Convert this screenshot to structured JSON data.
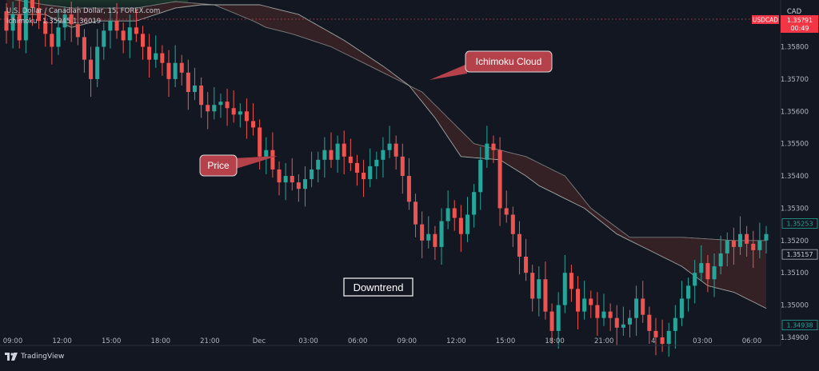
{
  "header": {
    "symbol_line": "U.S. Dollar / Canadian Dollar, 15, FOREX.com",
    "indicator_name": "Ichimoku",
    "indicator_values": "1.35945  1.36019"
  },
  "price_axis": {
    "currency": "CAD",
    "ticker_badge": "USDCAD",
    "countdown": "00:49",
    "tag_top_partial": "1.35?91"
  },
  "annotations": {
    "cloud_label": "Ichimoku Cloud",
    "price_label": "Price",
    "trend_label": "Downtrend"
  },
  "footer": {
    "brand": "TradingView"
  },
  "colors": {
    "background": "#131722",
    "bull": "#26a69a",
    "bear": "#ef5350",
    "cloud_bear_fill": "#3b2327",
    "cloud_line": "#b8bfb8",
    "callout": "#b5414b",
    "badge_red": "#f23645",
    "tag_green_text": "#26a69a"
  },
  "chart_data": {
    "type": "candlestick",
    "title": "U.S. Dollar / Canadian Dollar, 15, FOREX.com",
    "y_ticks": [
      1.349,
      1.35,
      1.351,
      1.352,
      1.353,
      1.354,
      1.355,
      1.356,
      1.357,
      1.358
    ],
    "ylim": [
      1.34885,
      1.35935
    ],
    "x_ticks": [
      "09:00",
      "12:00",
      "15:00",
      "18:00",
      "21:00",
      "Dec",
      "03:00",
      "06:00",
      "09:00",
      "12:00",
      "15:00",
      "18:00",
      "21:00",
      "4",
      "03:00",
      "06:00"
    ],
    "price_tags": [
      {
        "value": 1.35253,
        "label": "1.35253",
        "style": "green"
      },
      {
        "value": 1.35157,
        "label": "1.35157",
        "style": "dark"
      },
      {
        "value": 1.34938,
        "label": "1.34938",
        "style": "green"
      }
    ],
    "closes": [
      1.3585,
      1.359,
      1.3582,
      1.3595,
      1.3592,
      1.3588,
      1.3584,
      1.358,
      1.3586,
      1.359,
      1.3587,
      1.3583,
      1.3576,
      1.357,
      1.358,
      1.3585,
      1.3588,
      1.3585,
      1.3582,
      1.3586,
      1.3584,
      1.358,
      1.3576,
      1.3578,
      1.3575,
      1.357,
      1.3575,
      1.3572,
      1.3566,
      1.3568,
      1.3562,
      1.356,
      1.3562,
      1.3563,
      1.3561,
      1.3559,
      1.356,
      1.3557,
      1.3555,
      1.3546,
      1.3548,
      1.3542,
      1.3538,
      1.354,
      1.3538,
      1.3536,
      1.3539,
      1.3542,
      1.3545,
      1.3548,
      1.3545,
      1.355,
      1.3546,
      1.3544,
      1.3541,
      1.3539,
      1.3543,
      1.3545,
      1.3548,
      1.355,
      1.3546,
      1.354,
      1.3532,
      1.3525,
      1.352,
      1.3522,
      1.3518,
      1.3526,
      1.353,
      1.3527,
      1.3522,
      1.3528,
      1.3535,
      1.3545,
      1.355,
      1.3548,
      1.353,
      1.3528,
      1.3522,
      1.3515,
      1.351,
      1.3502,
      1.3508,
      1.3498,
      1.3492,
      1.35,
      1.351,
      1.3505,
      1.3498,
      1.3502,
      1.35,
      1.3496,
      1.3498,
      1.3496,
      1.3493,
      1.3494,
      1.3496,
      1.3502,
      1.3497,
      1.3492,
      1.349,
      1.3488,
      1.3492,
      1.3496,
      1.3502,
      1.3506,
      1.351,
      1.3513,
      1.3508,
      1.3512,
      1.3516,
      1.352,
      1.3518,
      1.3522,
      1.3519,
      1.3517,
      1.352,
      1.3522
    ],
    "cloud": {
      "span_a": [
        [
          0,
          1.359
        ],
        [
          6,
          1.359
        ],
        [
          10,
          1.3586
        ],
        [
          14,
          1.3588
        ],
        [
          20,
          1.3588
        ],
        [
          26,
          1.3592
        ],
        [
          30,
          1.3593
        ],
        [
          39,
          1.3593
        ],
        [
          45,
          1.359
        ],
        [
          52,
          1.3582
        ],
        [
          58,
          1.3574
        ],
        [
          62,
          1.3568
        ],
        [
          66,
          1.3558
        ],
        [
          70,
          1.3546
        ],
        [
          76,
          1.3545
        ],
        [
          80,
          1.354
        ],
        [
          82,
          1.3537
        ],
        [
          86,
          1.3533
        ],
        [
          89,
          1.353
        ],
        [
          94,
          1.3522
        ],
        [
          100,
          1.3516
        ],
        [
          104,
          1.3512
        ],
        [
          108,
          1.3506
        ],
        [
          112,
          1.3504
        ],
        [
          118,
          1.3498
        ],
        [
          120,
          1.3498
        ]
      ],
      "span_b": [
        [
          0,
          1.3595
        ],
        [
          6,
          1.3593
        ],
        [
          10,
          1.3592
        ],
        [
          14,
          1.3592
        ],
        [
          20,
          1.3592
        ],
        [
          26,
          1.3594
        ],
        [
          32,
          1.3593
        ],
        [
          38,
          1.3588
        ],
        [
          40,
          1.3586
        ],
        [
          44,
          1.3584
        ],
        [
          50,
          1.358
        ],
        [
          54,
          1.3576
        ],
        [
          58,
          1.3572
        ],
        [
          64,
          1.3566
        ],
        [
          66,
          1.3562
        ],
        [
          72,
          1.355
        ],
        [
          80,
          1.3546
        ],
        [
          86,
          1.354
        ],
        [
          90,
          1.353
        ],
        [
          94,
          1.3524
        ],
        [
          96,
          1.3521
        ],
        [
          104,
          1.3521
        ],
        [
          112,
          1.352
        ],
        [
          120,
          1.352
        ]
      ],
      "green_region_x": [
        0,
        28
      ]
    }
  }
}
